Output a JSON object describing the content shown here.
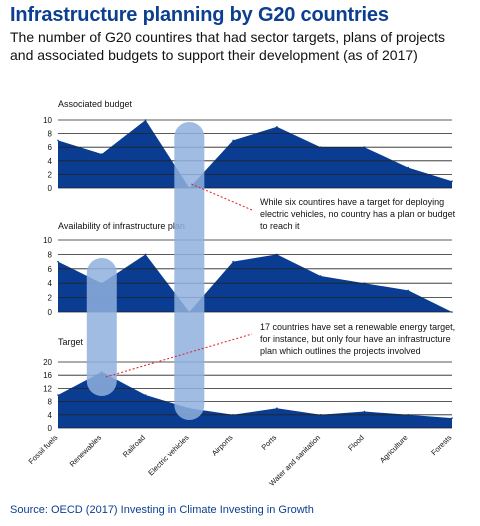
{
  "title": "Infrastructure planning by G20 countries",
  "subtitle": "The number of G20 countires that had sector targets, plans of projects and associated budgets to support their development (as of 2017)",
  "source": "Source: OECD (2017) Investing in Climate Investing in Growth",
  "colors": {
    "area": "#0a3d91",
    "highlight": "#8fb0de",
    "title": "#0c3f8f",
    "annotation_line": "#e01e1e"
  },
  "chart_data": {
    "type": "area",
    "categories": [
      "Fossil fuels",
      "Renewables",
      "Railroad",
      "Electric vehicles",
      "Airports",
      "Ports",
      "Water and sanitation",
      "Flood",
      "Agriculture",
      "Forests"
    ],
    "panels": [
      {
        "title": "Associated budget",
        "ylim": [
          0,
          10
        ],
        "yticks": [
          "0",
          "2",
          "4",
          "6",
          "8",
          "10"
        ],
        "values": [
          7,
          5,
          10,
          0,
          7,
          9,
          6,
          6,
          3,
          1
        ]
      },
      {
        "title": "Availability of infrastructure plan",
        "ylim": [
          0,
          10
        ],
        "yticks": [
          "0",
          "2",
          "4",
          "6",
          "8",
          "10"
        ],
        "values": [
          7,
          4,
          8,
          0,
          7,
          8,
          5,
          4,
          3,
          0
        ]
      },
      {
        "title": "Target",
        "ylim": [
          0,
          20
        ],
        "yticks": [
          "0",
          "4",
          "8",
          "12",
          "16",
          "20"
        ],
        "values": [
          10,
          17,
          10,
          6,
          4,
          6,
          4,
          5,
          4,
          3
        ]
      }
    ],
    "highlighted_categories": [
      "Renewables",
      "Electric vehicles"
    ],
    "annotations": [
      {
        "text_lines": [
          "While six countires have a target for deploying",
          "electric vehicles, no country has a plan or budget",
          "to reach it"
        ]
      },
      {
        "text_lines": [
          "17 countries have set a renewable energy target,",
          "for instance, but only four have an infrastructure",
          "plan which outlines the projects involved"
        ]
      }
    ],
    "grid": true,
    "legend": "none"
  }
}
